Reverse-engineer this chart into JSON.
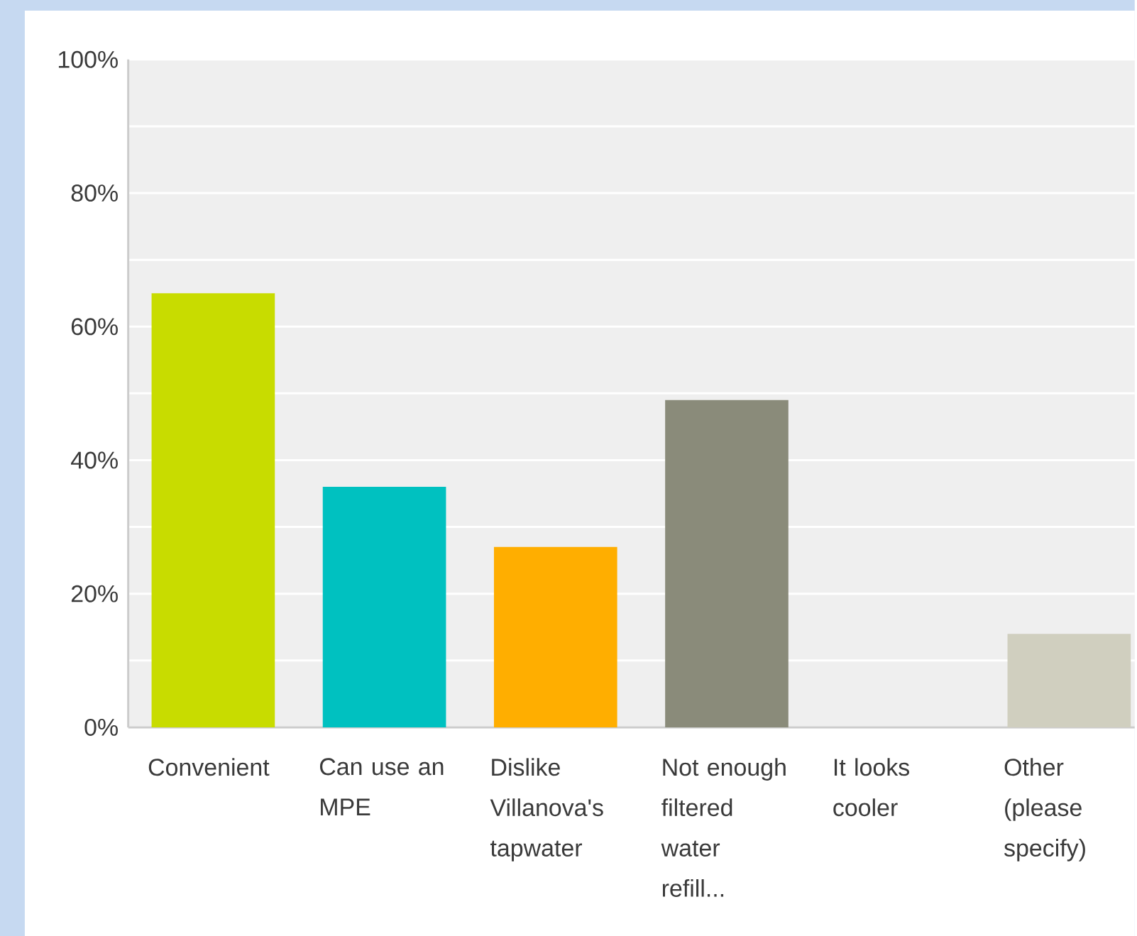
{
  "chart_data": {
    "type": "bar",
    "categories": [
      "Convenient",
      "Can use an MPE",
      "Dislike Villanova's tapwater",
      "Not enough filtered water refill...",
      "It looks cooler",
      "Other (please specify)"
    ],
    "values": [
      65,
      36,
      27,
      49,
      0,
      14
    ],
    "colors": [
      "#c8dc00",
      "#00c1c0",
      "#ffae00",
      "#8a8b7a",
      "#a8a890",
      "#d0cfbf"
    ],
    "ylim": [
      0,
      100
    ],
    "yticks": [
      {
        "value": 0,
        "label": "0%"
      },
      {
        "value": 10,
        "label": null
      },
      {
        "value": 20,
        "label": "20%"
      },
      {
        "value": 30,
        "label": null
      },
      {
        "value": 40,
        "label": "40%"
      },
      {
        "value": 50,
        "label": null
      },
      {
        "value": 60,
        "label": "60%"
      },
      {
        "value": 70,
        "label": null
      },
      {
        "value": 80,
        "label": "80%"
      },
      {
        "value": 90,
        "label": null
      },
      {
        "value": 100,
        "label": "100%"
      }
    ],
    "grid": "y"
  }
}
